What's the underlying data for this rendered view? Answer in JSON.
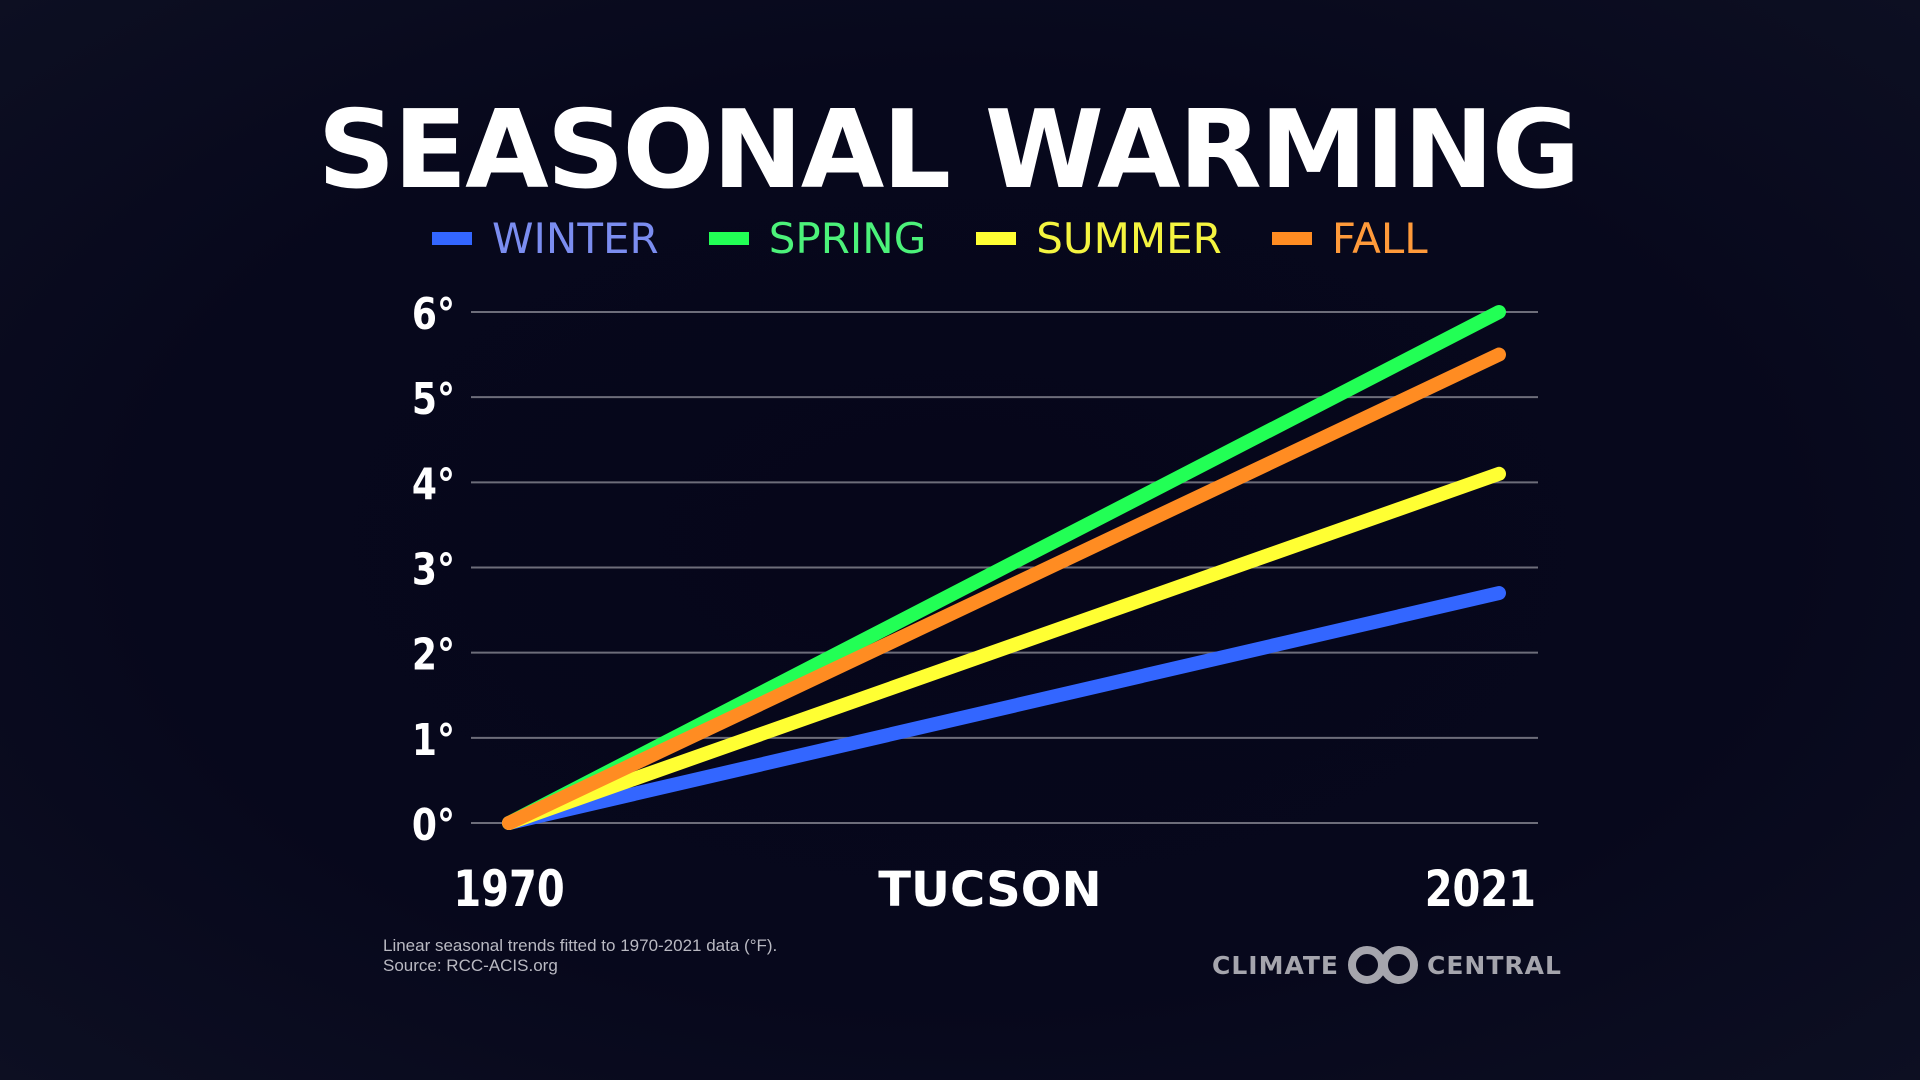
{
  "chart_data": {
    "type": "line",
    "title": "SEASONAL WARMING",
    "subtitle": "TUCSON",
    "x": [
      1970,
      2021
    ],
    "x_tick_labels": [
      "1970",
      "2021"
    ],
    "ylim": [
      0,
      6
    ],
    "y_ticks": [
      0,
      1,
      2,
      3,
      4,
      5,
      6
    ],
    "y_tick_labels": [
      "0°",
      "1°",
      "2°",
      "3°",
      "4°",
      "5°",
      "6°"
    ],
    "grid": true,
    "legend_placement": "top",
    "series": [
      {
        "name": "WINTER",
        "color": "#3366ff",
        "label_color": "#7b8df0",
        "values": [
          0,
          2.7
        ]
      },
      {
        "name": "SPRING",
        "color": "#22ff55",
        "label_color": "#4cf27a",
        "values": [
          0,
          6.0
        ]
      },
      {
        "name": "SUMMER",
        "color": "#ffff33",
        "label_color": "#f4f440",
        "values": [
          0,
          4.1
        ]
      },
      {
        "name": "FALL",
        "color": "#ff8c22",
        "label_color": "#ff9a3a",
        "values": [
          0,
          5.5
        ]
      }
    ]
  },
  "footnote": {
    "line1": "Linear seasonal trends fitted to 1970-2021 data (°F).",
    "line2": "Source: RCC-ACIS.org"
  },
  "logo": {
    "left": "CLIMATE",
    "right": "CENTRAL"
  }
}
